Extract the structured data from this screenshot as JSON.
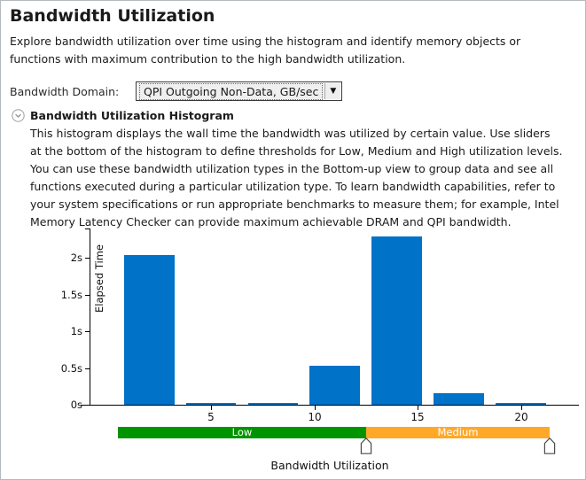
{
  "page": {
    "title": "Bandwidth Utilization",
    "intro": "Explore bandwidth utilization over time using the histogram and identify memory objects or functions with maximum contribution to the high bandwidth utilization."
  },
  "domain_selector": {
    "label": "Bandwidth Domain:",
    "selected": "QPI Outgoing Non-Data, GB/sec",
    "arrow_icon": "▼"
  },
  "histogram_section": {
    "title": "Bandwidth Utilization Histogram",
    "description": "This histogram displays the wall time the bandwidth was utilized by certain value. Use sliders at the bottom of the histogram to define thresholds for Low, Medium and High utilization levels. You can use these bandwidth utilization types in the Bottom-up view to group data and see all functions executed during a particular utilization type. To learn bandwidth capabilities, refer to your system specifications or run appropriate benchmarks to measure them; for example, Intel Memory Latency Checker can provide maximum achievable DRAM and QPI bandwidth."
  },
  "chart_data": {
    "type": "bar",
    "title": "",
    "xlabel": "Bandwidth Utilization",
    "ylabel": "Elapsed Time",
    "x_ticks": [
      5,
      10,
      15,
      20
    ],
    "y_ticks": [
      "0s",
      "0.5s",
      "1s",
      "1.5s",
      "2s"
    ],
    "y_tick_values": [
      0,
      0.5,
      1,
      1.5,
      2
    ],
    "xlim": [
      -1.3,
      22.8
    ],
    "ylim": [
      0,
      2.4
    ],
    "bin_centers": [
      2,
      5,
      8,
      11,
      14,
      17,
      20
    ],
    "bin_width": 3,
    "bar_width": 2.44,
    "values_seconds": [
      2.04,
      0.03,
      0.03,
      0.53,
      2.29,
      0.16,
      0.03
    ],
    "bar_color": "#0072c8",
    "grid": false,
    "legend": null
  },
  "threshold_slider": {
    "regions": [
      {
        "label": "Low",
        "start": 0.5,
        "end": 12.5,
        "color": "#009400"
      },
      {
        "label": "Medium",
        "start": 12.5,
        "end": 21.4,
        "color": "#ffa828"
      }
    ],
    "handles": [
      12.5,
      21.4
    ]
  }
}
